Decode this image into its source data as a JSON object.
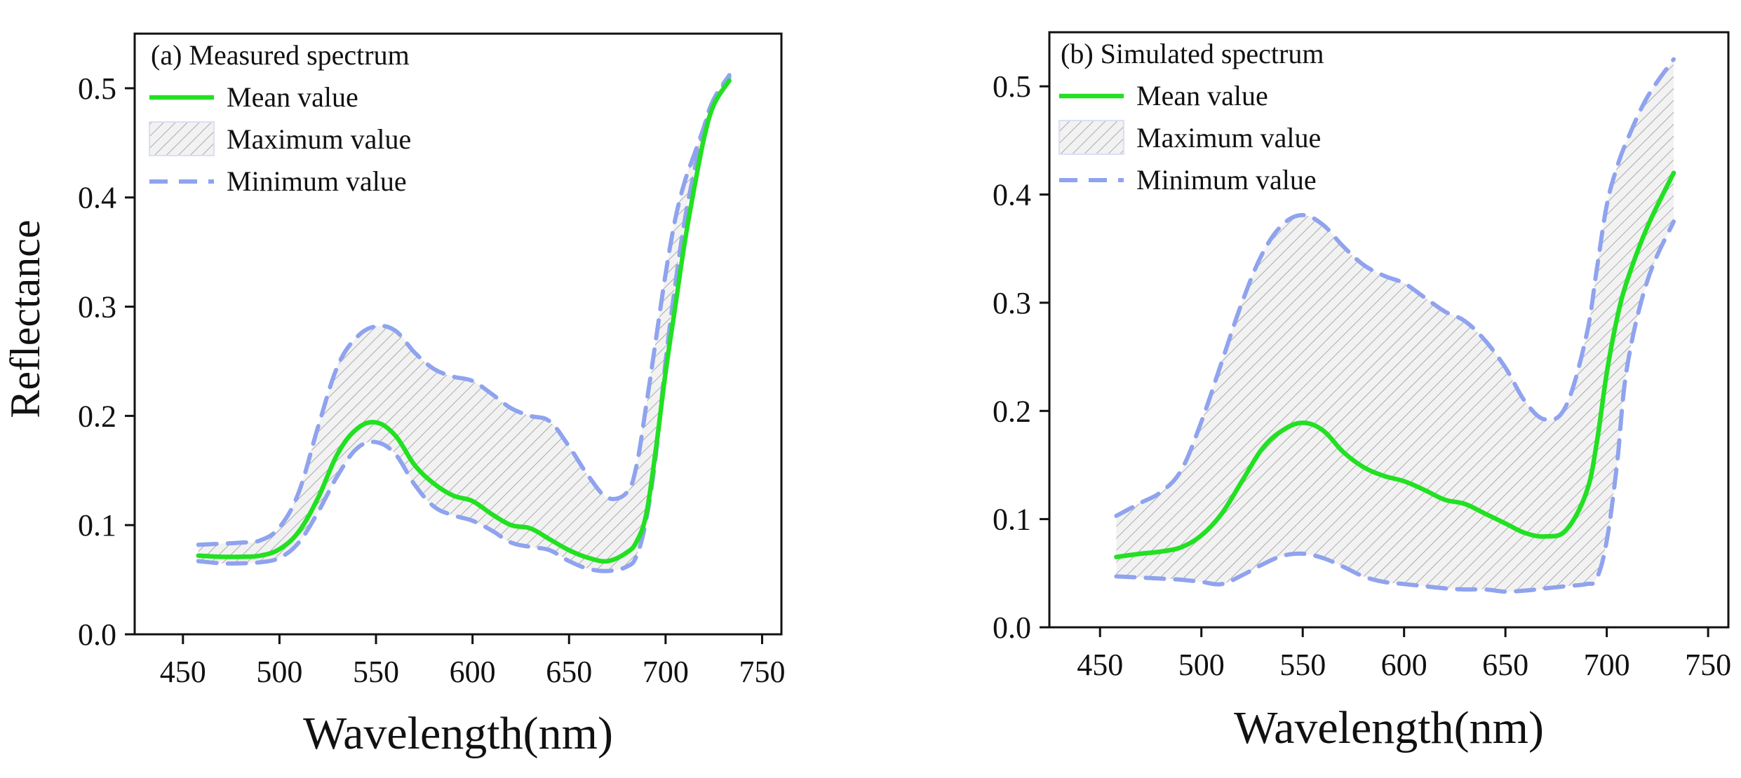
{
  "figure": {
    "y_axis_title": "Reflectance"
  },
  "colors": {
    "mean_line": "#22e022",
    "bound_line": "#8fa3ee",
    "hatch": "#9a9a9a",
    "hatch_bg": "#f2f2f2",
    "axis": "#111111"
  },
  "chart_data": [
    {
      "type": "area",
      "title": "(a)  Measured spectrum",
      "xlabel": "Wavelength(nm)",
      "ylabel": "Reflectance",
      "xlim": [
        425,
        760
      ],
      "ylim": [
        0,
        0.55
      ],
      "xticks": [
        450,
        500,
        550,
        600,
        650,
        700,
        750
      ],
      "yticks": [
        0.0,
        0.1,
        0.2,
        0.3,
        0.4,
        0.5
      ],
      "ytick_labels": [
        "0.0",
        "0.1",
        "0.2",
        "0.3",
        "0.4",
        "0.5"
      ],
      "grid": false,
      "legend_position": "top-left",
      "legend": {
        "mean": "Mean value",
        "max": "Maximum value",
        "min": "Minimum value"
      },
      "x": [
        458,
        470,
        480,
        490,
        500,
        510,
        520,
        530,
        540,
        550,
        560,
        570,
        580,
        590,
        600,
        610,
        620,
        630,
        640,
        650,
        660,
        670,
        680,
        685,
        690,
        695,
        700,
        705,
        710,
        715,
        720,
        725,
        733
      ],
      "series": [
        {
          "name": "Maximum value",
          "values": [
            0.082,
            0.083,
            0.084,
            0.086,
            0.098,
            0.13,
            0.19,
            0.245,
            0.272,
            0.282,
            0.278,
            0.258,
            0.243,
            0.236,
            0.232,
            0.22,
            0.207,
            0.2,
            0.195,
            0.172,
            0.145,
            0.125,
            0.13,
            0.155,
            0.21,
            0.27,
            0.33,
            0.38,
            0.415,
            0.44,
            0.465,
            0.49,
            0.512
          ]
        },
        {
          "name": "Mean value",
          "values": [
            0.072,
            0.071,
            0.071,
            0.072,
            0.078,
            0.094,
            0.125,
            0.165,
            0.188,
            0.194,
            0.182,
            0.155,
            0.138,
            0.127,
            0.122,
            0.11,
            0.1,
            0.097,
            0.087,
            0.077,
            0.07,
            0.067,
            0.075,
            0.085,
            0.11,
            0.17,
            0.24,
            0.3,
            0.36,
            0.41,
            0.455,
            0.485,
            0.507
          ]
        },
        {
          "name": "Minimum value",
          "values": [
            0.067,
            0.065,
            0.065,
            0.066,
            0.07,
            0.084,
            0.112,
            0.145,
            0.17,
            0.176,
            0.165,
            0.137,
            0.117,
            0.109,
            0.104,
            0.095,
            0.084,
            0.08,
            0.077,
            0.067,
            0.06,
            0.058,
            0.062,
            0.072,
            0.105,
            0.165,
            0.25,
            0.32,
            0.38,
            0.425,
            0.465,
            0.49,
            0.51
          ]
        }
      ]
    },
    {
      "type": "area",
      "title": "(b) Simulated spectrum",
      "xlabel": "Wavelength(nm)",
      "ylabel": "",
      "xlim": [
        425,
        760
      ],
      "ylim": [
        0,
        0.55
      ],
      "xticks": [
        450,
        500,
        550,
        600,
        650,
        700,
        750
      ],
      "yticks": [
        0.0,
        0.1,
        0.2,
        0.3,
        0.4,
        0.5
      ],
      "ytick_labels": [
        "0.0",
        "0.1",
        "0.2",
        "0.3",
        "0.4",
        "0.5"
      ],
      "grid": false,
      "legend_position": "top-left",
      "legend": {
        "mean": "Mean value",
        "max": "Maximum value",
        "min": "Minimum value"
      },
      "x": [
        458,
        470,
        480,
        490,
        500,
        510,
        520,
        530,
        540,
        550,
        560,
        570,
        580,
        590,
        600,
        610,
        620,
        630,
        640,
        650,
        660,
        670,
        680,
        690,
        695,
        700,
        705,
        710,
        720,
        733
      ],
      "series": [
        {
          "name": "Maximum value",
          "values": [
            0.103,
            0.115,
            0.125,
            0.145,
            0.19,
            0.245,
            0.3,
            0.345,
            0.372,
            0.381,
            0.372,
            0.352,
            0.335,
            0.325,
            0.318,
            0.305,
            0.292,
            0.283,
            0.265,
            0.24,
            0.208,
            0.192,
            0.205,
            0.27,
            0.33,
            0.39,
            0.425,
            0.45,
            0.49,
            0.525
          ]
        },
        {
          "name": "Mean value",
          "values": [
            0.065,
            0.068,
            0.07,
            0.074,
            0.085,
            0.105,
            0.135,
            0.165,
            0.182,
            0.189,
            0.182,
            0.162,
            0.148,
            0.14,
            0.135,
            0.127,
            0.118,
            0.114,
            0.105,
            0.096,
            0.087,
            0.084,
            0.09,
            0.125,
            0.17,
            0.235,
            0.285,
            0.32,
            0.37,
            0.42
          ]
        },
        {
          "name": "Minimum value",
          "values": [
            0.047,
            0.046,
            0.045,
            0.044,
            0.042,
            0.04,
            0.048,
            0.058,
            0.066,
            0.068,
            0.064,
            0.056,
            0.047,
            0.042,
            0.04,
            0.038,
            0.036,
            0.035,
            0.035,
            0.033,
            0.034,
            0.036,
            0.038,
            0.04,
            0.045,
            0.08,
            0.15,
            0.24,
            0.32,
            0.375
          ]
        }
      ]
    }
  ]
}
